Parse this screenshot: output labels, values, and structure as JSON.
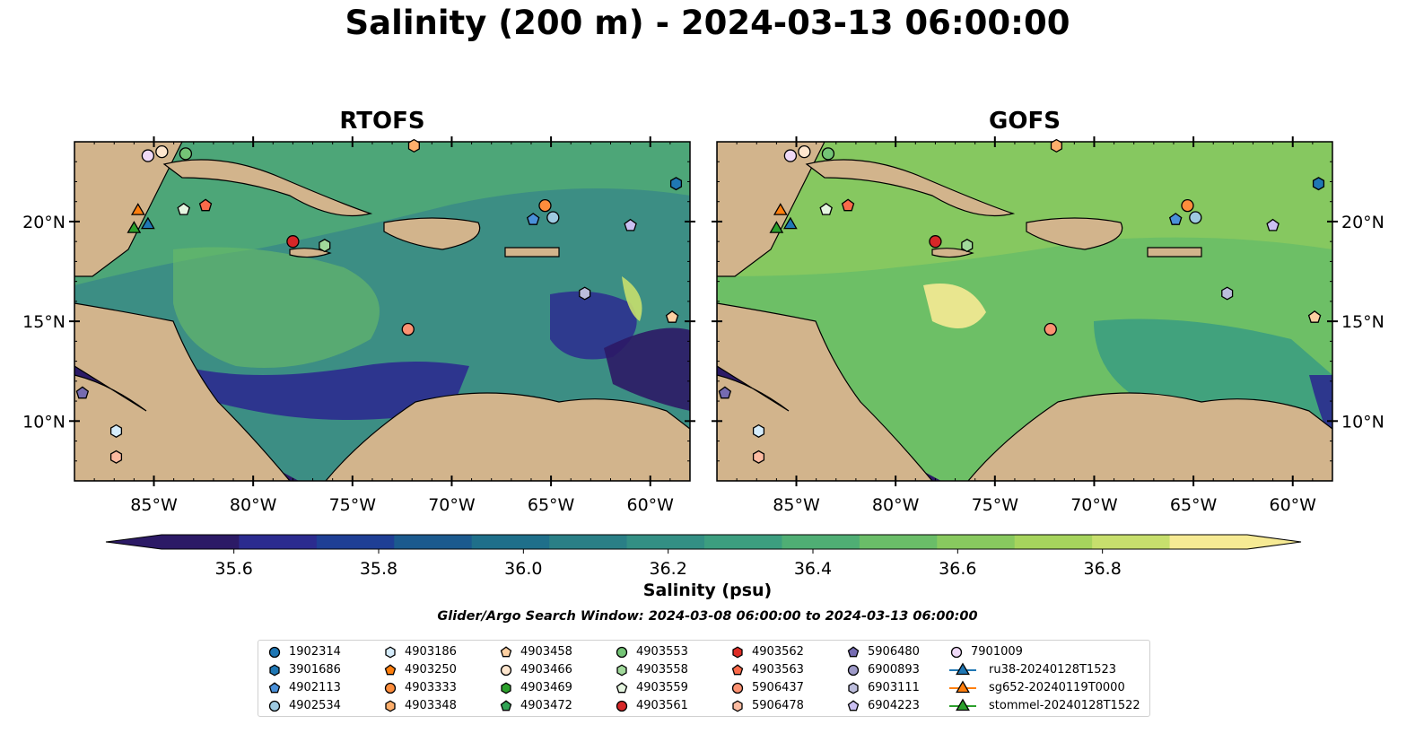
{
  "title": "Salinity (200 m) - 2024-03-13 06:00:00",
  "panels": [
    {
      "title": "RTOFS",
      "key": "rtofs"
    },
    {
      "title": "GOFS",
      "key": "gofs"
    }
  ],
  "chart_data": {
    "type": "heatmap",
    "map": {
      "lon_range": [
        -89,
        -58
      ],
      "lat_range": [
        7,
        24
      ],
      "lon_ticks": [
        "85°W",
        "80°W",
        "75°W",
        "70°W",
        "65°W",
        "60°W"
      ],
      "lat_ticks": [
        "20°N",
        "15°N",
        "10°N"
      ]
    },
    "colorbar": {
      "label": "Salinity (psu)",
      "range": [
        35.5,
        37.0
      ],
      "ticks": [
        35.6,
        35.8,
        36.0,
        36.2,
        36.4,
        36.6,
        36.8
      ],
      "tick_labels": [
        "35.6",
        "35.8",
        "36.0",
        "36.2",
        "36.4",
        "36.6",
        "36.8"
      ],
      "colors": [
        "#2c1a66",
        "#2b2b8f",
        "#1f3f95",
        "#1b5a8e",
        "#1f6f8a",
        "#2a7f86",
        "#338f84",
        "#3c9e7f",
        "#4fae74",
        "#6abd68",
        "#88c95f",
        "#a6d45d",
        "#c7df6d",
        "#f6ea94"
      ],
      "extend": "both"
    },
    "search_window": "Glider/Argo Search Window: 2024-03-08 06:00:00 to 2024-03-13 06:00:00",
    "platforms": [
      {
        "id": "1902314",
        "marker": "circle",
        "color": "#1f77b4",
        "lon": null,
        "lat": null
      },
      {
        "id": "3901686",
        "marker": "hexagon",
        "color": "#1f77b4",
        "lon": -58.7,
        "lat": 21.9
      },
      {
        "id": "4902113",
        "marker": "pentagon",
        "color": "#4a90d9",
        "lon": -65.9,
        "lat": 20.1
      },
      {
        "id": "4902534",
        "marker": "circle",
        "color": "#9ecae1",
        "lon": -64.9,
        "lat": 20.2
      },
      {
        "id": "4903186",
        "marker": "hexagon",
        "color": "#d5ecfb",
        "lon": -86.9,
        "lat": 9.5
      },
      {
        "id": "4903250",
        "marker": "pentagon",
        "color": "#ff7f0e",
        "lon": null,
        "lat": null
      },
      {
        "id": "4903333",
        "marker": "circle",
        "color": "#fd8d3c",
        "lon": -65.3,
        "lat": 20.8
      },
      {
        "id": "4903348",
        "marker": "hexagon",
        "color": "#fdae6b",
        "lon": -71.9,
        "lat": 23.8
      },
      {
        "id": "4903458",
        "marker": "pentagon",
        "color": "#fdd0a2",
        "lon": -58.9,
        "lat": 15.2
      },
      {
        "id": "4903466",
        "marker": "circle",
        "color": "#fee6ce",
        "lon": -84.6,
        "lat": 23.5
      },
      {
        "id": "4903469",
        "marker": "hexagon",
        "color": "#2ca02c",
        "lon": null,
        "lat": null
      },
      {
        "id": "4903472",
        "marker": "pentagon",
        "color": "#31a354",
        "lon": null,
        "lat": null
      },
      {
        "id": "4903553",
        "marker": "circle",
        "color": "#74c476",
        "lon": -83.4,
        "lat": 23.4
      },
      {
        "id": "4903558",
        "marker": "hexagon",
        "color": "#a1d99b",
        "lon": -76.4,
        "lat": 18.8
      },
      {
        "id": "4903559",
        "marker": "pentagon",
        "color": "#e5f5e0",
        "lon": -83.5,
        "lat": 20.6
      },
      {
        "id": "4903561",
        "marker": "circle",
        "color": "#d62728",
        "lon": -78.0,
        "lat": 19.0
      },
      {
        "id": "4903562",
        "marker": "hexagon",
        "color": "#de2d26",
        "lon": null,
        "lat": null
      },
      {
        "id": "4903563",
        "marker": "pentagon",
        "color": "#fb6a4a",
        "lon": -82.4,
        "lat": 20.8
      },
      {
        "id": "5906437",
        "marker": "circle",
        "color": "#fc9272",
        "lon": -72.2,
        "lat": 14.6
      },
      {
        "id": "5906478",
        "marker": "hexagon",
        "color": "#fcbba1",
        "lon": -86.9,
        "lat": 8.2
      },
      {
        "id": "5906480",
        "marker": "pentagon",
        "color": "#756bb1",
        "lon": -88.6,
        "lat": 11.4
      },
      {
        "id": "6900893",
        "marker": "circle",
        "color": "#9e9ac8",
        "lon": null,
        "lat": null
      },
      {
        "id": "6903111",
        "marker": "hexagon",
        "color": "#bcbddc",
        "lon": -63.3,
        "lat": 16.4
      },
      {
        "id": "6904223",
        "marker": "pentagon",
        "color": "#cbc0f2",
        "lon": -61.0,
        "lat": 19.8
      },
      {
        "id": "7901009",
        "marker": "circle",
        "color": "#efd9f7",
        "lon": -85.3,
        "lat": 23.3
      },
      {
        "id": "ru38-20240128T1523",
        "marker": "triangle",
        "color": "#1f77b4",
        "lon": -85.3,
        "lat": 19.9
      },
      {
        "id": "sg652-20240119T0000",
        "marker": "triangle",
        "color": "#ff7f0e",
        "lon": -85.8,
        "lat": 20.6
      },
      {
        "id": "stommel-20240128T1522",
        "marker": "triangle",
        "color": "#2ca02c",
        "lon": -86.0,
        "lat": 19.7
      }
    ]
  }
}
